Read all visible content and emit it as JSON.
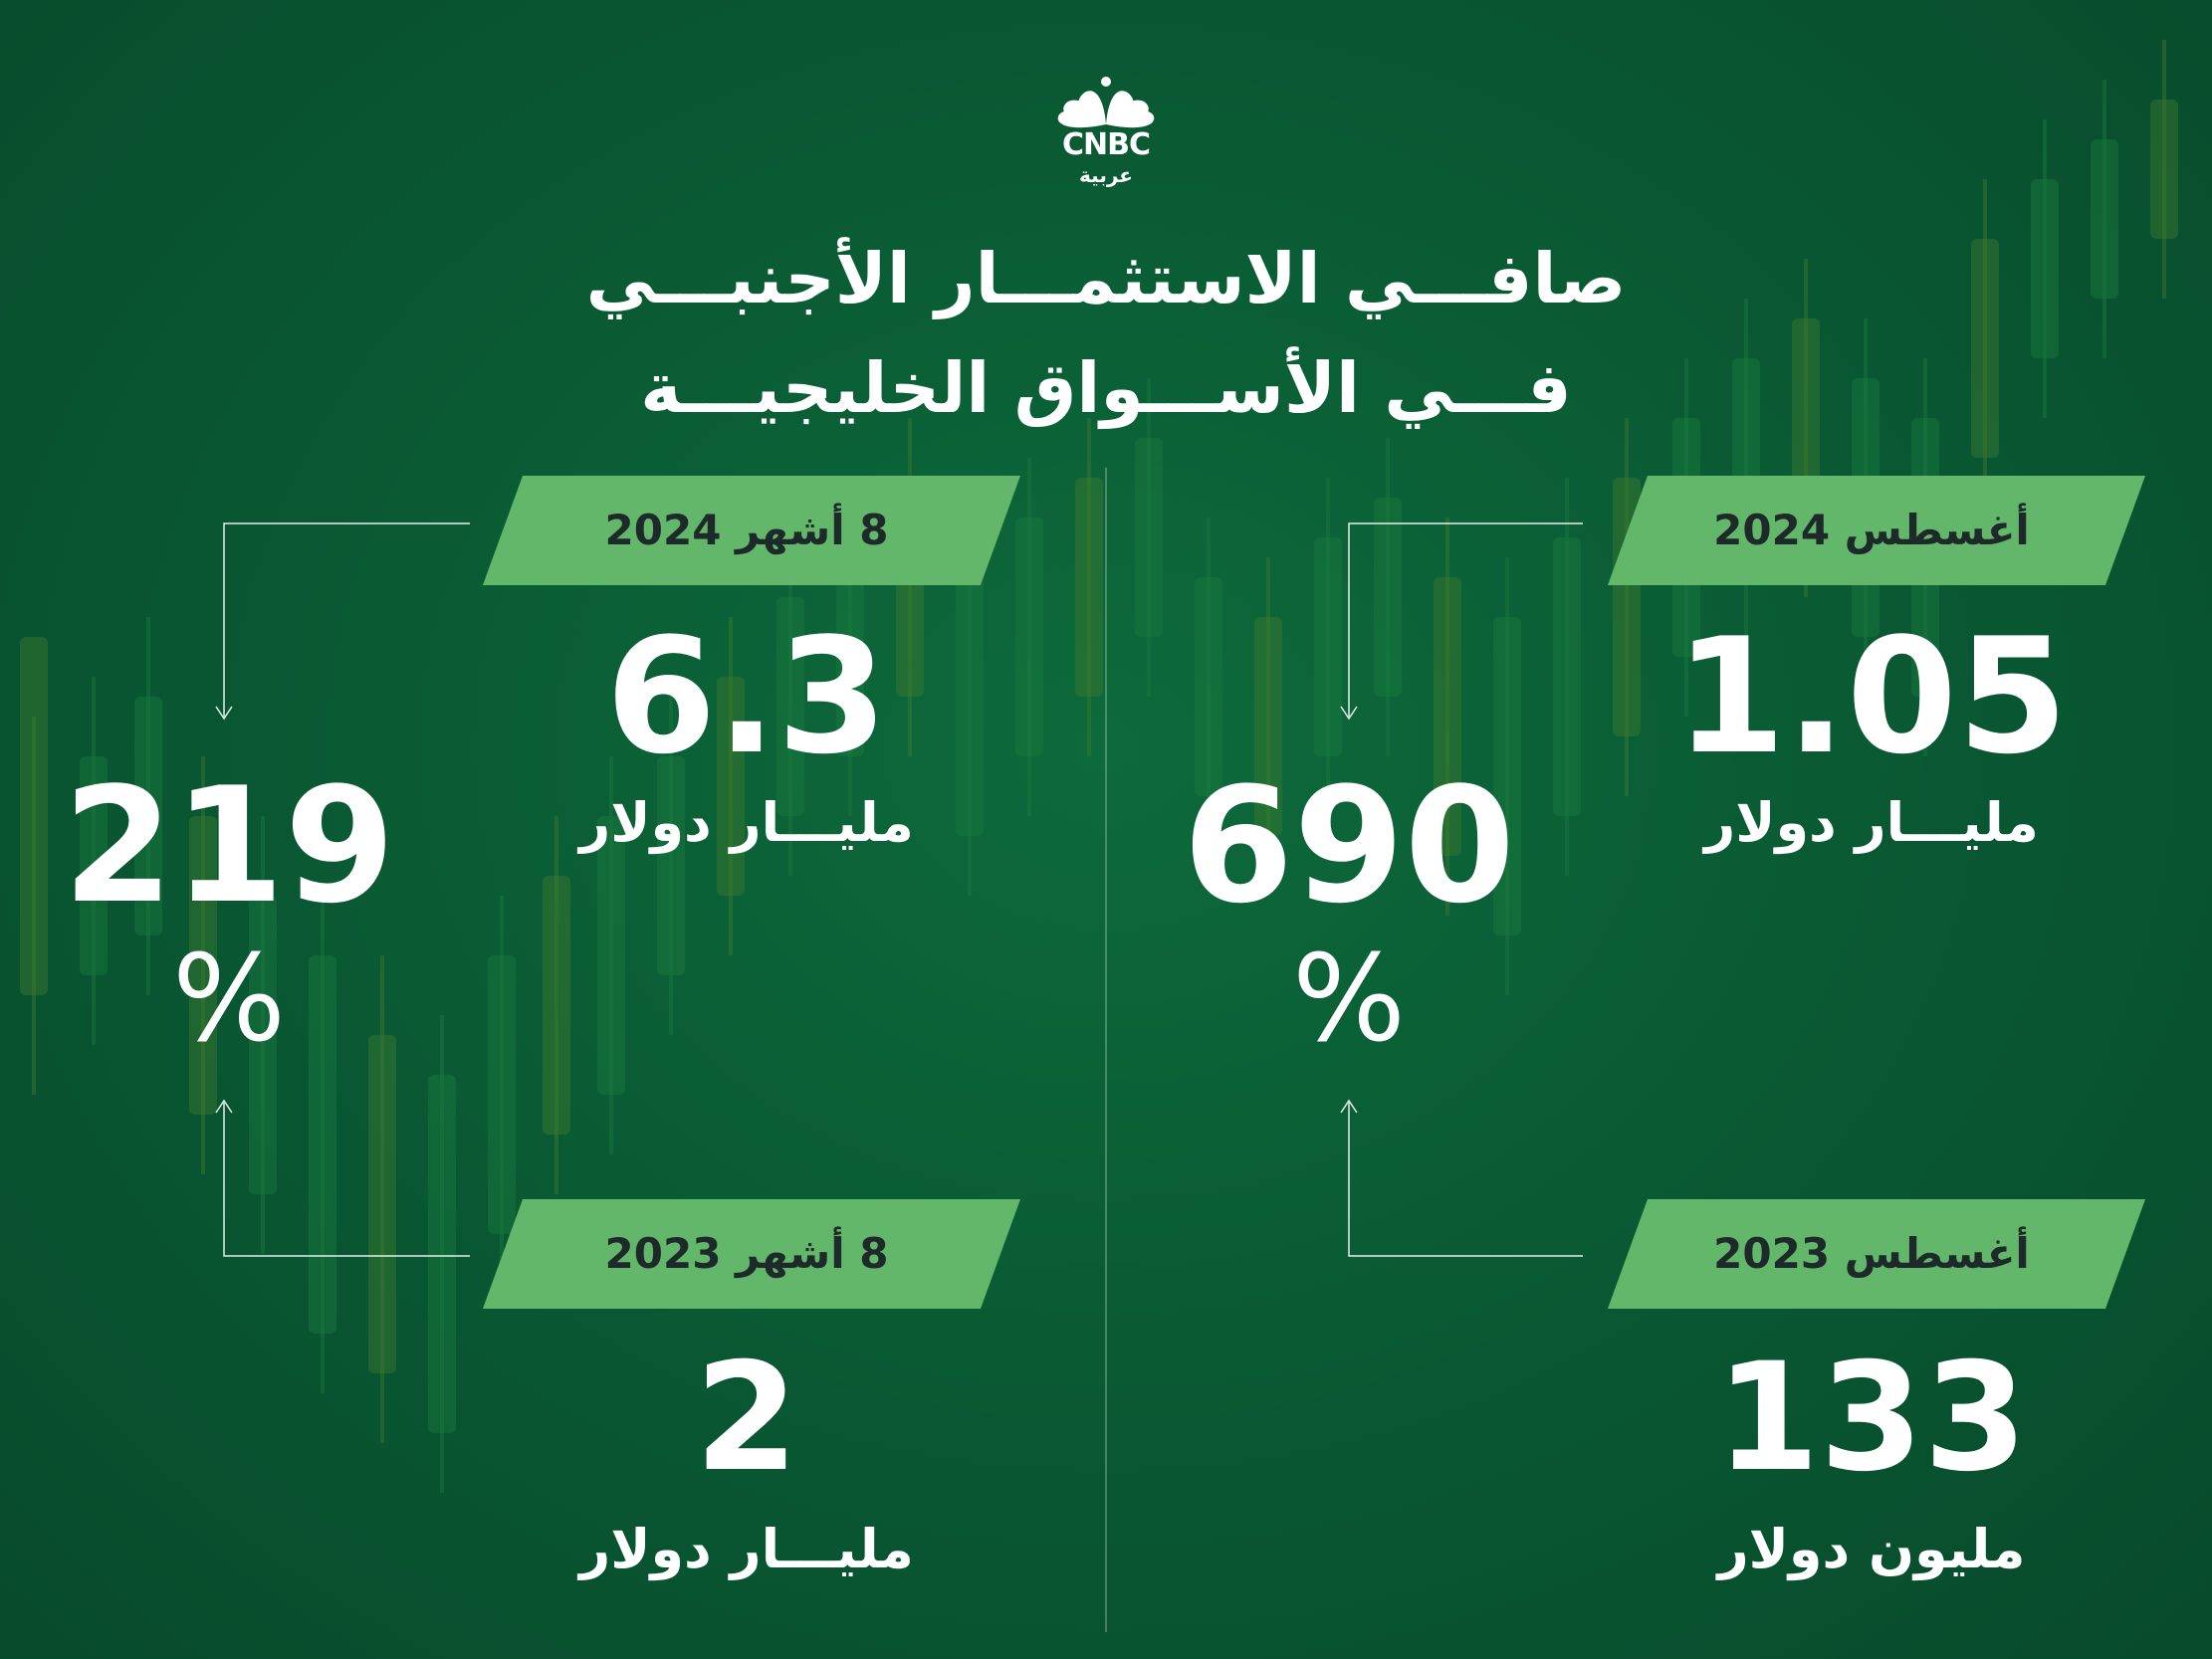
{
  "brand": {
    "name": "CNBC",
    "sub": "عربية"
  },
  "title": {
    "line1": "صافـــي الاستثمـــار الأجنبـــي",
    "line2": "فـــي الأســـواق الخليجيـــة"
  },
  "colors": {
    "background": "#0a5a33",
    "tag": "#63b76a",
    "tag_text": "#1e2a2a",
    "text": "#ffffff"
  },
  "right_panel": {
    "top_tag": "أغسطس 2024",
    "top_value": "1.05",
    "top_unit": "مليـــار دولار",
    "change_value": "690",
    "change_symbol": "%",
    "bottom_tag": "أغسطس 2023",
    "bottom_value": "133",
    "bottom_unit": "مليون دولار"
  },
  "left_panel": {
    "top_tag": "8 أشهر 2024",
    "top_value": "6.3",
    "top_unit": "مليـــار دولار",
    "change_value": "219",
    "change_symbol": "%",
    "bottom_tag": "8 أشهر 2023",
    "bottom_value": "2",
    "bottom_unit": "مليـــار دولار"
  }
}
